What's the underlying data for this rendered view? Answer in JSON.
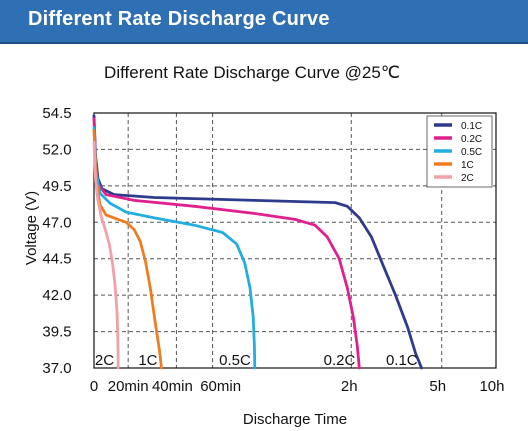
{
  "header": {
    "title": "Different Rate Discharge Curve"
  },
  "chart_data": {
    "type": "line",
    "title": "Different Rate Discharge Curve @25℃",
    "xlabel": "Discharge Time",
    "ylabel": "Voltage (V)",
    "ylim": [
      37.0,
      54.5
    ],
    "yticks": [
      "54.5",
      "52.0",
      "49.5",
      "47.0",
      "44.5",
      "42.0",
      "39.5",
      "37.0"
    ],
    "xtick_labels": [
      "0",
      "20min",
      "40min",
      "60min",
      "2h",
      "5h",
      "10h"
    ],
    "grid": true,
    "legend_position": "top-right",
    "series": [
      {
        "name": "0.1C",
        "label": "0.1C",
        "color": "#2e3a8c",
        "points": [
          [
            0,
            54.3
          ],
          [
            0.4,
            51.5
          ],
          [
            1,
            50.0
          ],
          [
            2,
            49.3
          ],
          [
            5,
            48.9
          ],
          [
            15,
            48.7
          ],
          [
            40,
            48.5
          ],
          [
            60,
            48.35
          ],
          [
            63,
            48.1
          ],
          [
            66,
            47.3
          ],
          [
            69,
            46.0
          ],
          [
            72,
            44.0
          ],
          [
            75,
            42.0
          ],
          [
            78,
            39.8
          ],
          [
            80,
            38.0
          ],
          [
            81.5,
            37.0
          ]
        ]
      },
      {
        "name": "0.2C",
        "label": "0.2C",
        "color": "#e0208e",
        "points": [
          [
            0,
            54.1
          ],
          [
            0.4,
            51.0
          ],
          [
            1,
            49.6
          ],
          [
            3,
            48.9
          ],
          [
            10,
            48.5
          ],
          [
            25,
            48.1
          ],
          [
            40,
            47.6
          ],
          [
            50,
            47.2
          ],
          [
            55,
            46.8
          ],
          [
            58,
            46.0
          ],
          [
            61,
            44.5
          ],
          [
            63,
            42.5
          ],
          [
            64.5,
            40.5
          ],
          [
            65.5,
            38.5
          ],
          [
            66,
            37.0
          ]
        ]
      },
      {
        "name": "0.5C",
        "label": "0.5C",
        "color": "#22aee0",
        "points": [
          [
            0,
            53.5
          ],
          [
            0.5,
            50.5
          ],
          [
            1.5,
            49.0
          ],
          [
            4,
            48.3
          ],
          [
            8,
            47.7
          ],
          [
            15,
            47.3
          ],
          [
            25,
            46.8
          ],
          [
            32,
            46.3
          ],
          [
            35.5,
            45.5
          ],
          [
            37.5,
            44.2
          ],
          [
            38.8,
            42.5
          ],
          [
            39.6,
            40.5
          ],
          [
            39.9,
            38.5
          ],
          [
            40,
            37.0
          ]
        ]
      },
      {
        "name": "1C",
        "label": "1C",
        "color": "#ee7d22",
        "points": [
          [
            0,
            53.3
          ],
          [
            0.5,
            50.0
          ],
          [
            1.5,
            48.2
          ],
          [
            3,
            47.5
          ],
          [
            6,
            47.2
          ],
          [
            8,
            47.0
          ],
          [
            10,
            46.5
          ],
          [
            11.5,
            45.7
          ],
          [
            12.8,
            44.3
          ],
          [
            14,
            42.5
          ],
          [
            15.3,
            40.0
          ],
          [
            16.3,
            38.2
          ],
          [
            16.8,
            37.0
          ]
        ]
      },
      {
        "name": "2C",
        "label": "2C",
        "color": "#f0a2a8",
        "points": [
          [
            0,
            52.5
          ],
          [
            0.4,
            49.8
          ],
          [
            1,
            48.5
          ],
          [
            1.8,
            47.4
          ],
          [
            2.8,
            46.5
          ],
          [
            3.8,
            45.5
          ],
          [
            4.6,
            44.2
          ],
          [
            5.2,
            42.8
          ],
          [
            5.7,
            41.0
          ],
          [
            5.9,
            39.5
          ],
          [
            6.0,
            38.0
          ],
          [
            6.0,
            37.0
          ]
        ]
      }
    ]
  }
}
